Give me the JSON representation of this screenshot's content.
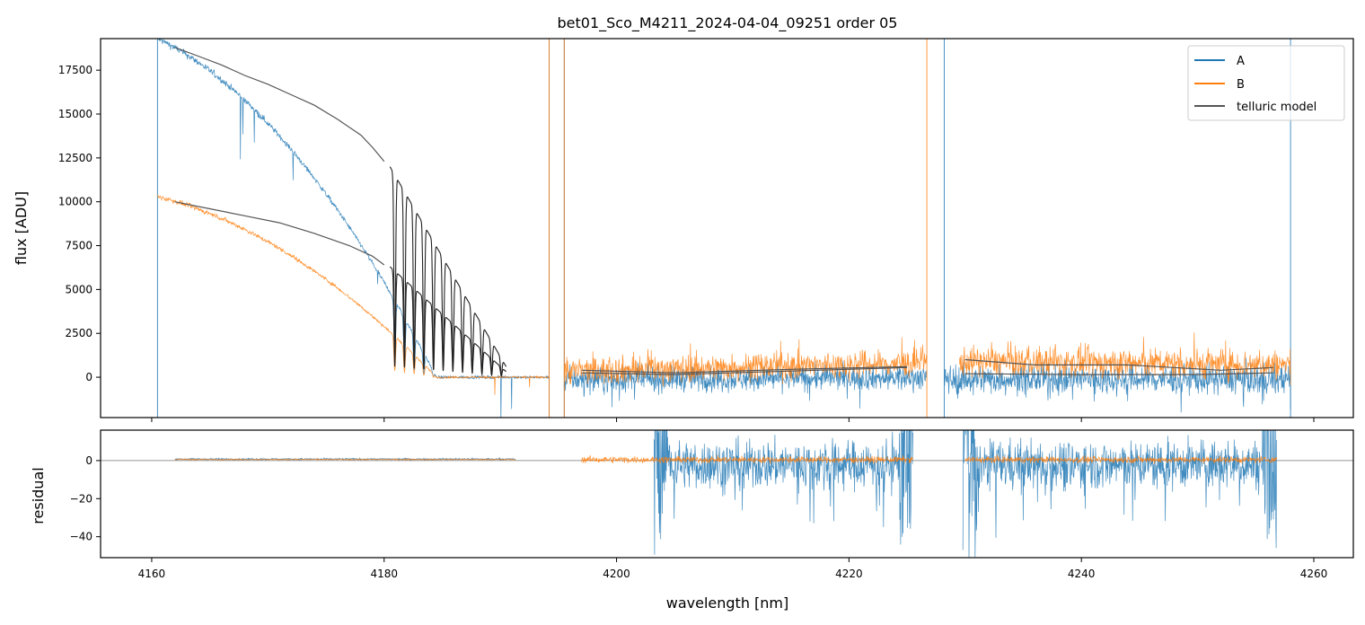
{
  "chart_data": [
    {
      "type": "line",
      "title": "bet01_Sco_M4211_2024-04-04_09251  order 05",
      "xlabel": "",
      "ylabel": "flux [ADU]",
      "xlim": [
        4155.6,
        4263.4
      ],
      "ylim": [
        -2300,
        19300
      ],
      "xticks": [
        4160,
        4180,
        4200,
        4220,
        4240,
        4260
      ],
      "yticks": [
        0,
        2500,
        5000,
        7500,
        10000,
        12500,
        15000,
        17500
      ],
      "ytick_labels": [
        "0",
        "2500",
        "5000",
        "7500",
        "10000",
        "12500",
        "15000",
        "17500"
      ],
      "legend": {
        "position": "top-right",
        "entries": [
          {
            "label": "A",
            "color": "#1f77b4"
          },
          {
            "label": "B",
            "color": "#ff7f0e"
          },
          {
            "label": "telluric model",
            "color": "#555555"
          }
        ]
      },
      "series": [
        {
          "name": "A",
          "color": "#1f77b4",
          "segments": [
            {
              "x_range": [
                4160.5,
                4194.2
              ],
              "start": 19300,
              "end": 0,
              "noise": 150
            },
            {
              "x_range": [
                4195.5,
                4226.7
              ],
              "start": -150,
              "end": 0,
              "noise": 500
            },
            {
              "x_range": [
                4228.2,
                4258.0
              ],
              "start": -100,
              "end": -100,
              "noise": 600
            }
          ],
          "spikes_x": [
            4160.5,
            4194.2,
            4195.5,
            4228.2,
            4258.0
          ]
        },
        {
          "name": "B",
          "color": "#ff7f0e",
          "segments": [
            {
              "x_range": [
                4160.5,
                4194.2
              ],
              "start": 10300,
              "end": 0,
              "noise": 100
            },
            {
              "x_range": [
                4195.5,
                4226.7
              ],
              "start": 350,
              "end": 800,
              "noise": 550
            },
            {
              "x_range": [
                4229.5,
                4258.0
              ],
              "start": 900,
              "end": 700,
              "noise": 600
            }
          ],
          "spikes_x": [
            4194.2,
            4195.5,
            4226.7
          ]
        },
        {
          "name": "telluric model",
          "color": "#555555",
          "curves": [
            {
              "x": [
                4162,
                4164,
                4166,
                4168,
                4170,
                4172,
                4174,
                4176,
                4178,
                4179,
                4180
              ],
              "y": [
                18800,
                18300,
                17800,
                17200,
                16700,
                16100,
                15500,
                14700,
                13800,
                13100,
                12300
              ]
            },
            {
              "x": [
                4162,
                4165,
                4168,
                4171,
                4174,
                4177,
                4179,
                4180
              ],
              "y": [
                10000,
                9600,
                9200,
                8800,
                8200,
                7500,
                6900,
                6400
              ]
            },
            {
              "x": [
                4197,
                4205,
                4215,
                4225
              ],
              "y": [
                400,
                250,
                450,
                600
              ]
            },
            {
              "x": [
                4197,
                4205,
                4215,
                4225
              ],
              "y": [
                250,
                150,
                350,
                550
              ]
            },
            {
              "x": [
                4230,
                4236,
                4244,
                4252,
                4256.5
              ],
              "y": [
                1000,
                700,
                700,
                400,
                550
              ]
            },
            {
              "x": [
                4230,
                4240,
                4250,
                4256.5
              ],
              "y": [
                200,
                150,
                150,
                250
              ]
            }
          ],
          "lines_region": {
            "x_range": [
              4180.5,
              4190.5
            ],
            "n_lines": 12
          }
        }
      ]
    },
    {
      "type": "line",
      "title": "",
      "xlabel": "wavelength [nm]",
      "ylabel": "residual",
      "xlim": [
        4155.6,
        4263.4
      ],
      "ylim": [
        -51,
        16
      ],
      "xticks": [
        4160,
        4180,
        4200,
        4220,
        4240,
        4260
      ],
      "xtick_labels": [
        "4160",
        "4180",
        "4200",
        "4220",
        "4240",
        "4260"
      ],
      "yticks": [
        0,
        -20,
        -40
      ],
      "ytick_labels": [
        "0",
        "−20",
        "−40"
      ],
      "zero_line": true,
      "series": [
        {
          "name": "A",
          "color": "#1f77b4",
          "segments": [
            {
              "x_range": [
                4162.0,
                4191.3
              ],
              "level": 0.8,
              "noise": 0.3
            },
            {
              "x_range": [
                4203.2,
                4225.5
              ],
              "level": -2,
              "noise": 9
            },
            {
              "x_range": [
                4229.8,
                4256.8
              ],
              "level": -2,
              "noise": 9
            }
          ]
        },
        {
          "name": "B",
          "color": "#ff7f0e",
          "segments": [
            {
              "x_range": [
                4162.0,
                4191.3
              ],
              "level": 0.6,
              "noise": 0.2
            },
            {
              "x_range": [
                4197.0,
                4225.5
              ],
              "level": 0.5,
              "noise": 1.2
            },
            {
              "x_range": [
                4230.0,
                4256.8
              ],
              "level": 0.5,
              "noise": 1.2
            }
          ]
        }
      ]
    }
  ]
}
